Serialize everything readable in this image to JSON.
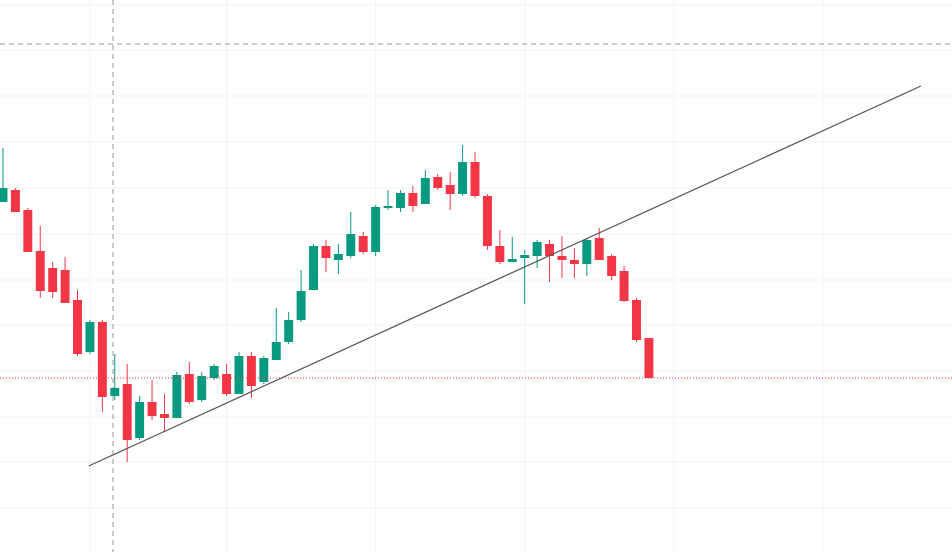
{
  "chart_data": {
    "type": "candlestick",
    "up_color": "#089981",
    "down_color": "#f23645",
    "grid": true,
    "xlim": [
      -0.24,
      76.4
    ],
    "ylim": [
      0,
      552
    ],
    "xticks": [
      7,
      18,
      30,
      42,
      54,
      66
    ],
    "yticks": [
      44,
      90,
      135,
      181,
      227,
      272,
      318,
      364,
      410,
      456,
      502,
      547
    ],
    "open": [
      350,
      362,
      342,
      301,
      284,
      282,
      252,
      200,
      230,
      156,
      168,
      114,
      150,
      138,
      134,
      178,
      152,
      174,
      178,
      158,
      196,
      170,
      192,
      210,
      232,
      262,
      306,
      292,
      296,
      316,
      300,
      344,
      344,
      359,
      348,
      375,
      367,
      358,
      390,
      356,
      306,
      290,
      294,
      296,
      308,
      296,
      292,
      288,
      314,
      296,
      281,
      252,
      214
    ],
    "high": [
      404,
      364,
      344,
      326,
      290,
      295,
      262,
      232,
      232,
      198,
      188,
      156,
      172,
      158,
      180,
      190,
      180,
      188,
      188,
      200,
      200,
      196,
      244,
      240,
      282,
      308,
      312,
      308,
      340,
      320,
      347,
      362,
      362,
      366,
      382,
      378,
      380,
      407,
      400,
      358,
      322,
      315,
      302,
      312,
      312,
      316,
      304,
      314,
      324,
      298,
      286,
      254,
      214
    ],
    "low": [
      350,
      340,
      300,
      254,
      254,
      249,
      196,
      198,
      140,
      152,
      90,
      112,
      132,
      120,
      134,
      148,
      150,
      172,
      156,
      158,
      154,
      168,
      192,
      208,
      230,
      262,
      280,
      278,
      294,
      298,
      296,
      342,
      340,
      340,
      348,
      362,
      342,
      356,
      354,
      302,
      288,
      290,
      248,
      284,
      270,
      274,
      274,
      276,
      292,
      272,
      250,
      210,
      174
    ],
    "close": [
      364,
      340,
      300,
      261,
      260,
      249,
      198,
      230,
      155,
      164,
      112,
      150,
      136,
      134,
      177,
      150,
      176,
      186,
      158,
      196,
      166,
      194,
      210,
      232,
      261,
      306,
      294,
      298,
      318,
      300,
      345,
      346,
      359,
      346,
      374,
      364,
      358,
      390,
      356,
      306,
      290,
      293,
      297,
      310,
      296,
      292,
      288,
      312,
      292,
      276,
      251,
      212,
      174
    ],
    "trendline": {
      "x": [
        6.9,
        73.9
      ],
      "values": [
        86,
        466
      ],
      "color": "#555555"
    },
    "crosshair": {
      "x": 8.86,
      "y": 508,
      "color": "#9598a1"
    }
  }
}
